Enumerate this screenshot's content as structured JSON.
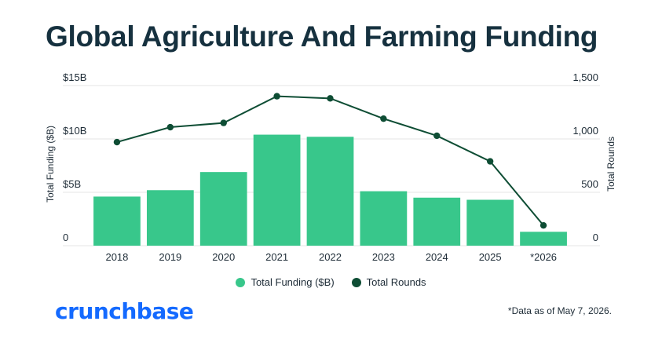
{
  "title": "Global Agriculture And Farming Funding",
  "brand": "crunchbase",
  "footnote": "*Data as of May 7, 2026.",
  "chart_data": {
    "type": "bar",
    "categories": [
      "2018",
      "2019",
      "2020",
      "2021",
      "2022",
      "2023",
      "2024",
      "2025",
      "*2026"
    ],
    "series": [
      {
        "name": "Total Funding ($B)",
        "type": "bar",
        "axis": "left",
        "color": "#38c78b",
        "values": [
          4.6,
          5.2,
          6.9,
          10.4,
          10.2,
          5.1,
          4.5,
          4.3,
          1.3
        ]
      },
      {
        "name": "Total Rounds",
        "type": "line",
        "axis": "right",
        "color": "#0e4d34",
        "values": [
          970,
          1110,
          1150,
          1400,
          1380,
          1190,
          1030,
          790,
          190
        ]
      }
    ],
    "y_left": {
      "label": "Total Funding ($B)",
      "ticks": [
        0,
        5,
        10,
        15
      ],
      "tick_labels": [
        "0",
        "$5B",
        "$10B",
        "$15B"
      ],
      "range": [
        0,
        15
      ]
    },
    "y_right": {
      "label": "Total Rounds",
      "ticks": [
        0,
        500,
        1000,
        1500
      ],
      "tick_labels": [
        "0",
        "500",
        "1,000",
        "1,500"
      ],
      "range": [
        0,
        1500
      ]
    },
    "grid": true,
    "legend_placement": "bottom-center"
  }
}
